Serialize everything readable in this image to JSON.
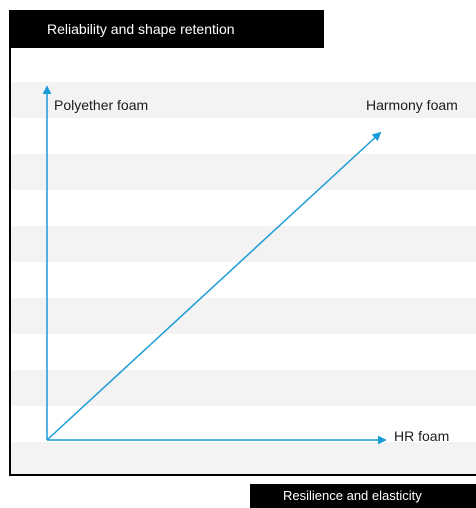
{
  "header": {
    "title": "Reliability and shape retention"
  },
  "footer": {
    "label": "Resilience and elasticity"
  },
  "diagram": {
    "y_axis_label": "Polyether foam",
    "x_axis_label": "HR foam",
    "diagonal_label": "Harmony foam",
    "arrow_color": "#1a9bd7",
    "frame_color": "#000000",
    "stripe_color": "#f3f3f3"
  }
}
